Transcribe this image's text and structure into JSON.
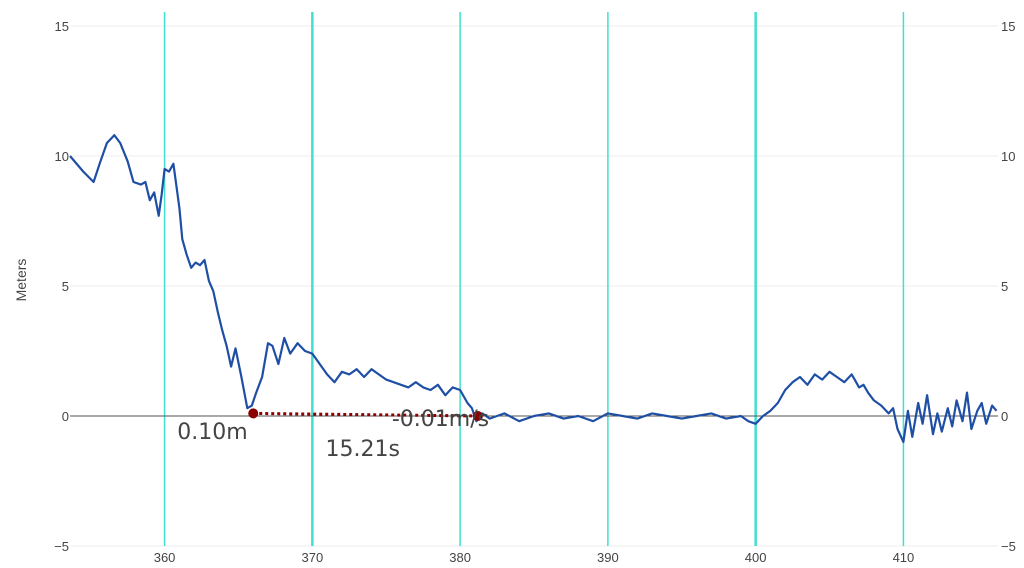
{
  "chart_data": {
    "type": "line",
    "title": "",
    "xlabel": "",
    "ylabel": "Meters",
    "xlim": [
      353.6,
      416.4
    ],
    "ylim": [
      -5,
      15
    ],
    "x_ticks": [
      360,
      370,
      380,
      390,
      400,
      410
    ],
    "y_ticks": [
      -5,
      0,
      5,
      10,
      15
    ],
    "right_y_ticks": [
      -5,
      0,
      5,
      10,
      15
    ],
    "vertical_lines": [
      360,
      370,
      380,
      390,
      400,
      410
    ],
    "grid": true,
    "series": [
      {
        "color": "#1f4fa5",
        "x": [
          353.6,
          354.5,
          355.2,
          355.6,
          356.1,
          356.6,
          357.0,
          357.5,
          357.9,
          358.4,
          358.7,
          359.0,
          359.3,
          359.6,
          359.8,
          360.0,
          360.3,
          360.6,
          361.0,
          361.2,
          361.5,
          361.8,
          362.1,
          362.4,
          362.7,
          363.0,
          363.3,
          363.6,
          363.9,
          364.2,
          364.5,
          364.8,
          365.2,
          365.6,
          365.9,
          366.2,
          366.6,
          367.0,
          367.3,
          367.7,
          368.1,
          368.5,
          369.0,
          369.5,
          370.0,
          370.5,
          371.0,
          371.5,
          372.0,
          372.5,
          373.0,
          373.5,
          374.0,
          374.5,
          375.0,
          375.5,
          376.0,
          376.5,
          377.0,
          377.5,
          378.0,
          378.5,
          379.0,
          379.5,
          380.0,
          380.5,
          380.8,
          381.1,
          381.5,
          382.0,
          383.0,
          384.0,
          385.0,
          386.0,
          387.0,
          388.0,
          389.0,
          390.0,
          391.0,
          392.0,
          393.0,
          394.0,
          395.0,
          396.0,
          397.0,
          398.0,
          399.0,
          399.5,
          400.0,
          400.5,
          401.0,
          401.5,
          402.0,
          402.5,
          403.0,
          403.5,
          404.0,
          404.5,
          405.0,
          405.5,
          406.0,
          406.5,
          407.0,
          407.3,
          407.6,
          408.0,
          408.5,
          409.0,
          409.3,
          409.6,
          410.0,
          410.3,
          410.6,
          411.0,
          411.3,
          411.6,
          412.0,
          412.3,
          412.6,
          413.0,
          413.3,
          413.6,
          414.0,
          414.3,
          414.6,
          415.0,
          415.3,
          415.6,
          416.0,
          416.3
        ],
        "y": [
          10.0,
          9.4,
          9.0,
          9.7,
          10.5,
          10.8,
          10.5,
          9.8,
          9.0,
          8.9,
          9.0,
          8.3,
          8.6,
          7.7,
          8.5,
          9.5,
          9.4,
          9.7,
          8.0,
          6.8,
          6.2,
          5.7,
          5.9,
          5.8,
          6.0,
          5.2,
          4.8,
          4.0,
          3.3,
          2.7,
          1.9,
          2.6,
          1.5,
          0.3,
          0.4,
          0.9,
          1.5,
          2.8,
          2.7,
          2.0,
          3.0,
          2.4,
          2.8,
          2.5,
          2.4,
          2.0,
          1.6,
          1.3,
          1.7,
          1.6,
          1.8,
          1.5,
          1.8,
          1.6,
          1.4,
          1.3,
          1.2,
          1.1,
          1.3,
          1.1,
          1.0,
          1.2,
          0.8,
          1.1,
          1.0,
          0.5,
          0.3,
          -0.2,
          0.1,
          -0.1,
          0.1,
          -0.2,
          0.0,
          0.1,
          -0.1,
          0.0,
          -0.2,
          0.1,
          0.0,
          -0.1,
          0.1,
          0.0,
          -0.1,
          0.0,
          0.1,
          -0.1,
          0.0,
          -0.2,
          -0.3,
          0.0,
          0.2,
          0.5,
          1.0,
          1.3,
          1.5,
          1.2,
          1.6,
          1.4,
          1.7,
          1.5,
          1.3,
          1.6,
          1.1,
          1.2,
          0.9,
          0.6,
          0.4,
          0.1,
          0.3,
          -0.5,
          -1.0,
          0.2,
          -0.8,
          0.5,
          -0.3,
          0.8,
          -0.7,
          0.1,
          -0.6,
          0.3,
          -0.4,
          0.6,
          -0.2,
          0.9,
          -0.5,
          0.2,
          0.5,
          -0.3,
          0.4,
          0.2
        ]
      }
    ],
    "measurement": {
      "color": "#8b0000",
      "start": {
        "x": 366.0,
        "y": 0.1
      },
      "end": {
        "x": 381.2,
        "y": 0.0
      },
      "labels": {
        "height": "0.10m",
        "rate": "-0.01m/s",
        "duration": "15.21s"
      }
    }
  }
}
